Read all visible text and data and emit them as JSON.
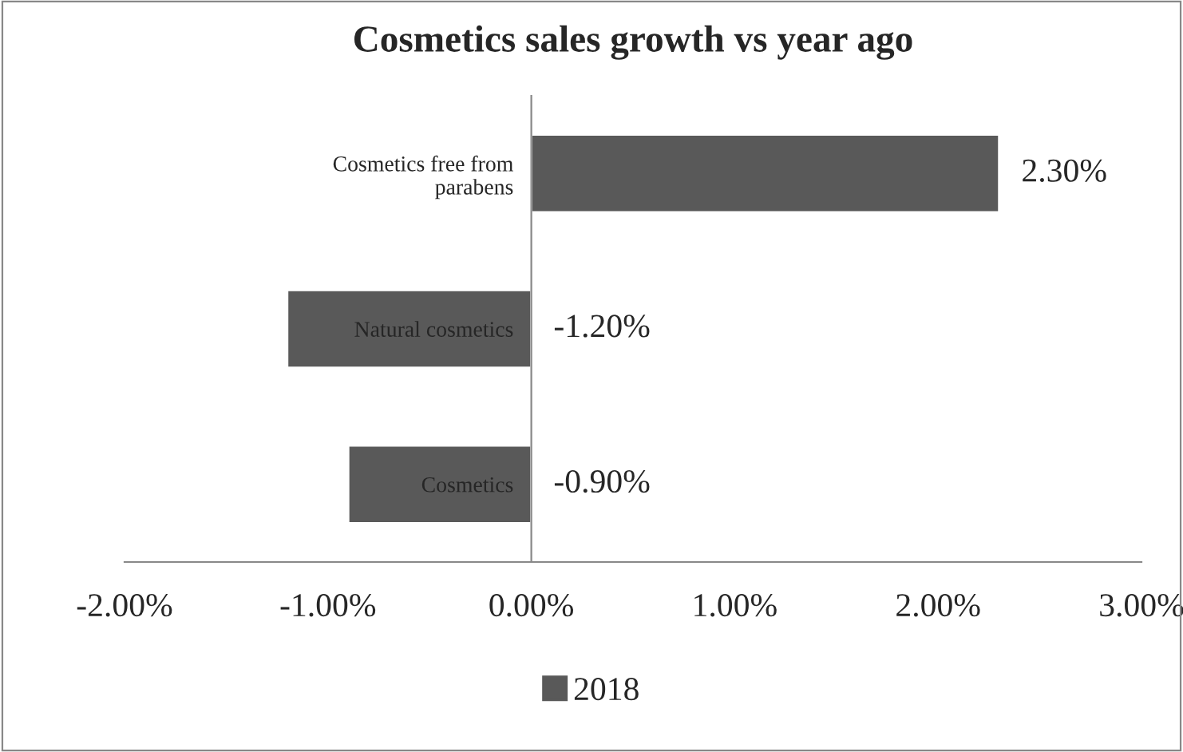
{
  "chart_data": {
    "type": "bar",
    "orientation": "horizontal",
    "title": "Cosmetics sales growth vs year ago",
    "categories": [
      "Cosmetics free from\nparabens",
      "Natural cosmetics",
      "Cosmetics"
    ],
    "series": [
      {
        "name": "2018",
        "color": "#595959",
        "values": [
          2.3,
          -1.2,
          -0.9
        ],
        "value_labels": [
          "2.30%",
          "-1.20%",
          "-0.90%"
        ]
      }
    ],
    "xlim": [
      -2,
      3
    ],
    "xticks": [
      {
        "value": -2,
        "label": "-2.00%"
      },
      {
        "value": -1,
        "label": "-1.00%"
      },
      {
        "value": 0,
        "label": "0.00%"
      },
      {
        "value": 1,
        "label": "1.00%"
      },
      {
        "value": 2,
        "label": "2.00%"
      },
      {
        "value": 3,
        "label": "3.00%"
      }
    ],
    "grid": false,
    "legend": "bottom"
  }
}
